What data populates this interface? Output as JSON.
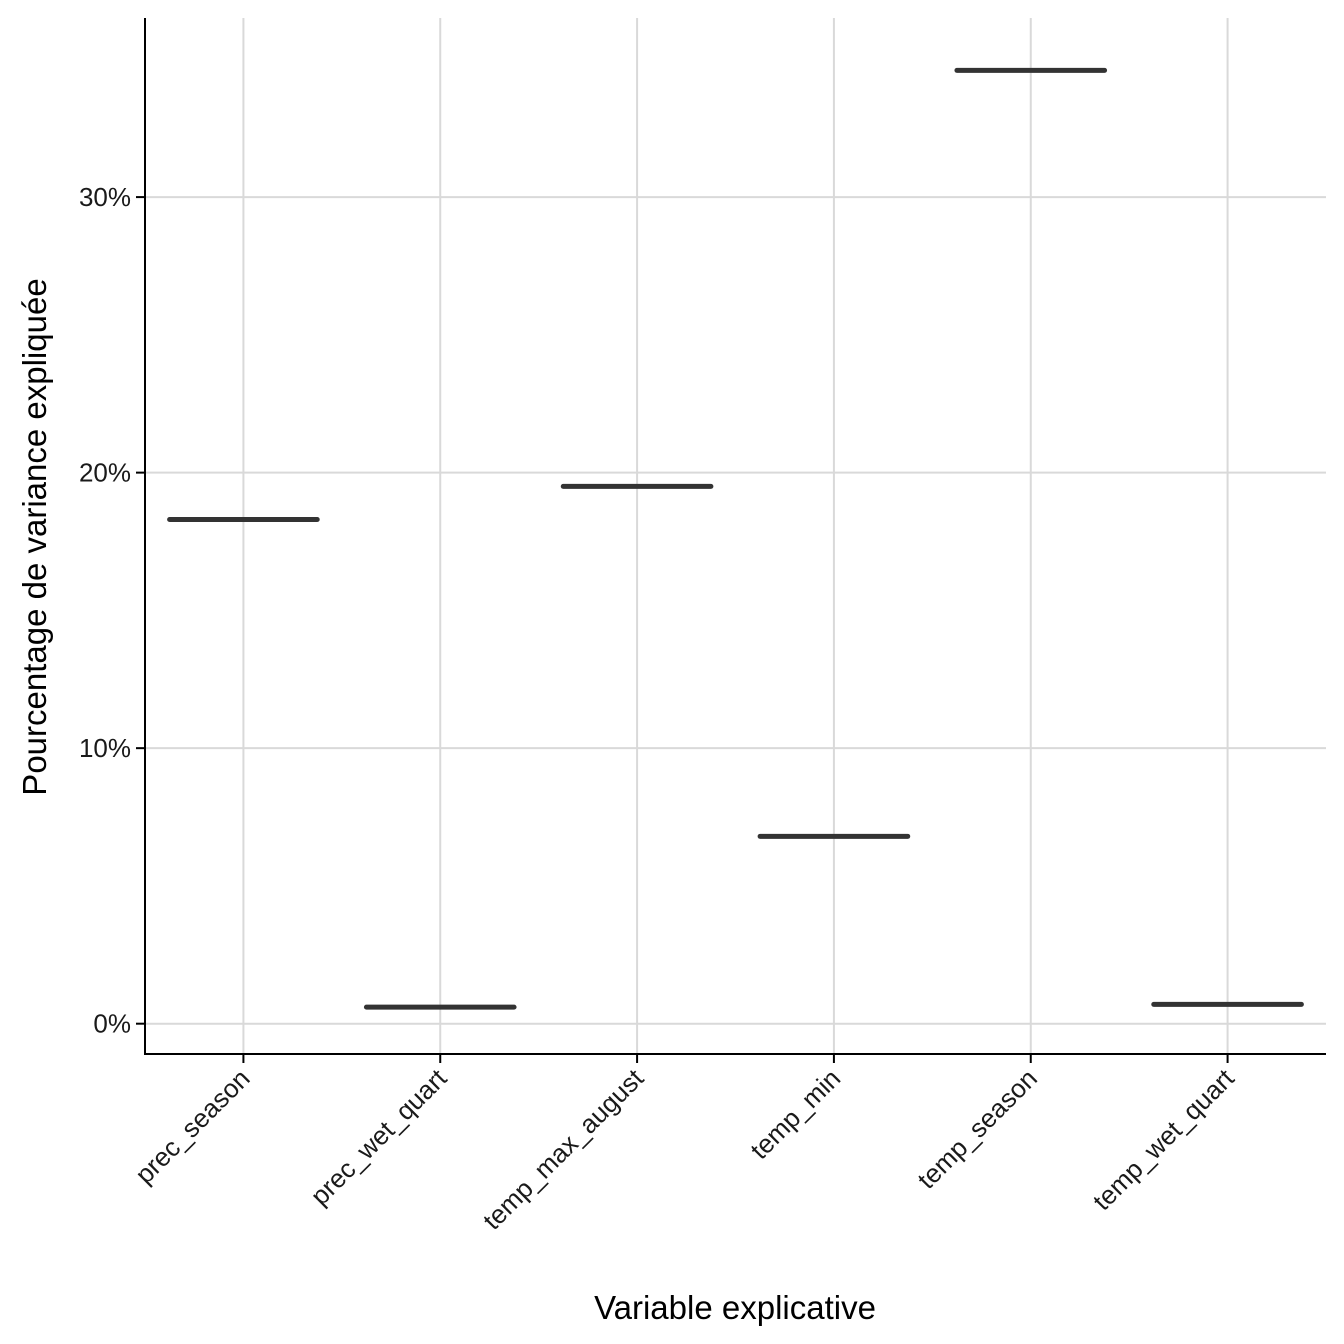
{
  "chart_data": {
    "type": "crossbar",
    "title": "",
    "xlabel": "Variable explicative",
    "ylabel": "Pourcentage de variance expliquée",
    "categories": [
      "prec_season",
      "prec_wet_quart",
      "temp_max_august",
      "temp_min",
      "temp_season",
      "temp_wet_quart"
    ],
    "values": [
      18.3,
      0.6,
      19.5,
      6.8,
      34.6,
      0.7
    ],
    "y_unit": "%",
    "ylim": [
      -1.1,
      36.5
    ],
    "yticks": [
      0,
      10,
      20,
      30
    ],
    "ytick_labels": [
      "0%",
      "10%",
      "20%",
      "30%"
    ],
    "grid": true,
    "legend": "none",
    "colors": {
      "mark": "#333333",
      "grid": "#d9d9d9",
      "axis": "#000000"
    }
  }
}
